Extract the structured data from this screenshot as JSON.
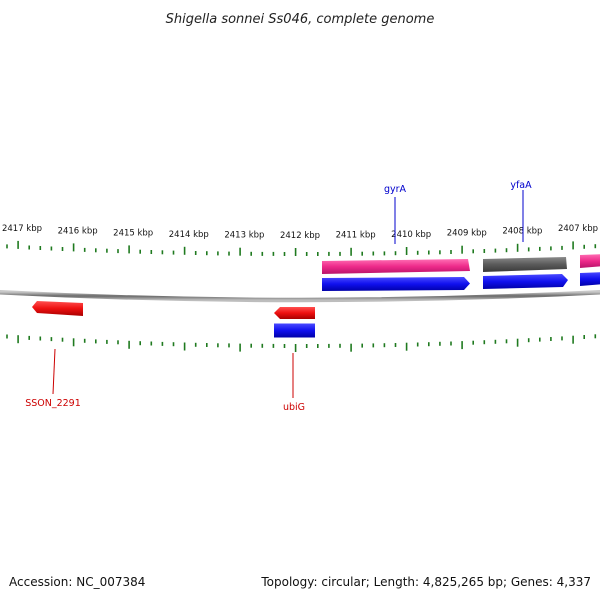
{
  "title": "Shigella sonnei Ss046, complete genome",
  "ticks": {
    "labels": [
      "2417 kbp",
      "2416 kbp",
      "2415 kbp",
      "2414 kbp",
      "2413 kbp",
      "2412 kbp",
      "2411 kbp",
      "2410 kbp",
      "2409 kbp",
      "2408 kbp",
      "2407 kbp"
    ],
    "color": "#1f7a1f"
  },
  "genes": {
    "top": [
      {
        "name": "gyrA",
        "color": "#0000cc"
      },
      {
        "name": "yfaA",
        "color": "#0000cc"
      }
    ],
    "bottom": [
      {
        "name": "SSON_2291",
        "color": "#cc0000"
      },
      {
        "name": "ubiG",
        "color": "#cc0000"
      }
    ]
  },
  "features": {
    "pink": "#ee2a8a",
    "gray": "#5a5a5a",
    "blue": "#1010ee",
    "red": "#ee1010"
  },
  "footer": {
    "accession": "Accession: NC_007384",
    "summary": "Topology: circular; Length: 4,825,265 bp; Genes: 4,337"
  }
}
